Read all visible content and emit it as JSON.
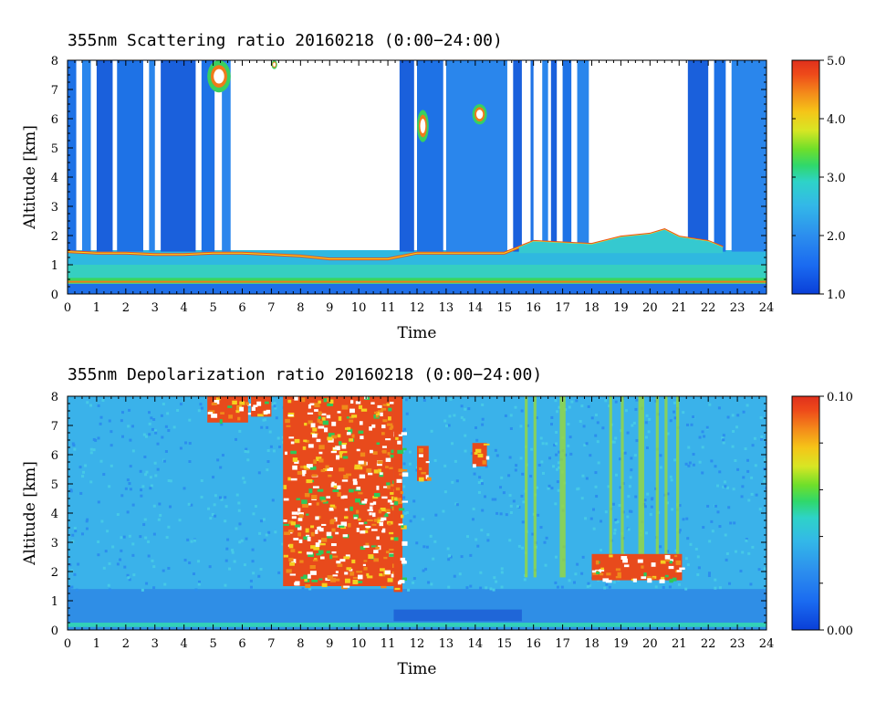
{
  "chart_data": [
    {
      "type": "heatmap",
      "title": "355nm Scattering ratio  20160218 (0:00−24:00)",
      "xlabel": "Time",
      "ylabel": "Altitude [km]",
      "xlim": [
        0,
        24
      ],
      "ylim": [
        0,
        8
      ],
      "x_ticks": [
        "0",
        "1",
        "2",
        "3",
        "4",
        "5",
        "6",
        "7",
        "8",
        "9",
        "10",
        "11",
        "12",
        "13",
        "14",
        "15",
        "16",
        "17",
        "18",
        "19",
        "20",
        "21",
        "22",
        "23",
        "24"
      ],
      "y_ticks": [
        "0",
        "1",
        "2",
        "3",
        "4",
        "5",
        "6",
        "7",
        "8"
      ],
      "colorbar": {
        "min": 1.0,
        "max": 5.0,
        "ticks": [
          "1.0",
          "2.0",
          "3.0",
          "4.0",
          "5.0"
        ]
      },
      "cloud_top_base_km": [
        [
          0.0,
          1.45
        ],
        [
          1.0,
          1.4
        ],
        [
          2.0,
          1.4
        ],
        [
          3.0,
          1.35
        ],
        [
          4.0,
          1.35
        ],
        [
          5.0,
          1.4
        ],
        [
          6.0,
          1.4
        ],
        [
          7.0,
          1.35
        ],
        [
          8.0,
          1.3
        ],
        [
          9.0,
          1.2
        ],
        [
          10.0,
          1.2
        ],
        [
          11.0,
          1.2
        ],
        [
          12.0,
          1.4
        ],
        [
          13.0,
          1.4
        ],
        [
          14.0,
          1.4
        ],
        [
          15.0,
          1.4
        ],
        [
          15.5,
          1.6
        ],
        [
          16.0,
          1.8
        ],
        [
          17.0,
          1.75
        ],
        [
          18.0,
          1.7
        ],
        [
          19.0,
          1.95
        ],
        [
          20.0,
          2.05
        ],
        [
          20.5,
          2.2
        ],
        [
          21.0,
          1.95
        ],
        [
          22.0,
          1.8
        ],
        [
          22.5,
          1.6
        ]
      ],
      "cloud_columns": [
        [
          0.0,
          0.3
        ],
        [
          0.5,
          0.8
        ],
        [
          1.0,
          1.55
        ],
        [
          1.7,
          2.6
        ],
        [
          2.8,
          3.0
        ],
        [
          3.2,
          4.4
        ],
        [
          4.6,
          5.05
        ],
        [
          5.3,
          5.6
        ],
        [
          11.4,
          11.9
        ],
        [
          12.0,
          12.9
        ],
        [
          13.0,
          15.1
        ],
        [
          15.3,
          15.6
        ],
        [
          15.9,
          16.0
        ],
        [
          16.3,
          16.5
        ],
        [
          16.6,
          16.8
        ],
        [
          17.0,
          17.3
        ],
        [
          17.5,
          17.9
        ],
        [
          21.3,
          22.0
        ],
        [
          22.2,
          22.6
        ],
        [
          22.8,
          24.0
        ]
      ],
      "high_ratio_features": [
        {
          "t": [
            4.8,
            5.6
          ],
          "alt_km": [
            6.9,
            8.0
          ]
        },
        {
          "t": [
            12.0,
            12.4
          ],
          "alt_km": [
            5.2,
            6.3
          ]
        },
        {
          "t": [
            13.9,
            14.4
          ],
          "alt_km": [
            5.8,
            6.5
          ]
        },
        {
          "t": [
            7.0,
            7.2
          ],
          "alt_km": [
            7.7,
            8.0
          ]
        }
      ]
    },
    {
      "type": "heatmap",
      "title": "355nm Depolarization ratio  20160218 (0:00−24:00)",
      "xlabel": "Time",
      "ylabel": "Altitude [km]",
      "xlim": [
        0,
        24
      ],
      "ylim": [
        0,
        8
      ],
      "x_ticks": [
        "0",
        "1",
        "2",
        "3",
        "4",
        "5",
        "6",
        "7",
        "8",
        "9",
        "10",
        "11",
        "12",
        "13",
        "14",
        "15",
        "16",
        "17",
        "18",
        "19",
        "20",
        "21",
        "22",
        "23",
        "24"
      ],
      "y_ticks": [
        "0",
        "1",
        "2",
        "3",
        "4",
        "5",
        "6",
        "7",
        "8"
      ],
      "colorbar": {
        "min": 0.0,
        "max": 0.1,
        "ticks": [
          "0.00",
          "0.10"
        ]
      },
      "high_depol_regions": [
        {
          "t": [
            7.4,
            11.2
          ],
          "alt_km": [
            1.5,
            8.0
          ]
        },
        {
          "t": [
            11.2,
            11.5
          ],
          "alt_km": [
            1.3,
            8.0
          ]
        },
        {
          "t": [
            4.8,
            6.2
          ],
          "alt_km": [
            7.1,
            8.0
          ]
        },
        {
          "t": [
            6.3,
            7.0
          ],
          "alt_km": [
            7.3,
            8.0
          ]
        },
        {
          "t": [
            12.0,
            12.4
          ],
          "alt_km": [
            5.1,
            6.3
          ]
        },
        {
          "t": [
            13.9,
            14.4
          ],
          "alt_km": [
            5.6,
            6.4
          ]
        },
        {
          "t": [
            18.0,
            21.1
          ],
          "alt_km": [
            1.7,
            2.6
          ]
        }
      ],
      "streak_columns": [
        [
          15.7,
          15.8
        ],
        [
          16.0,
          16.1
        ],
        [
          16.9,
          17.1
        ],
        [
          18.6,
          18.7
        ],
        [
          19.0,
          19.1
        ],
        [
          19.6,
          19.8
        ],
        [
          20.2,
          20.3
        ],
        [
          20.5,
          20.6
        ],
        [
          20.9,
          21.0
        ]
      ]
    }
  ]
}
